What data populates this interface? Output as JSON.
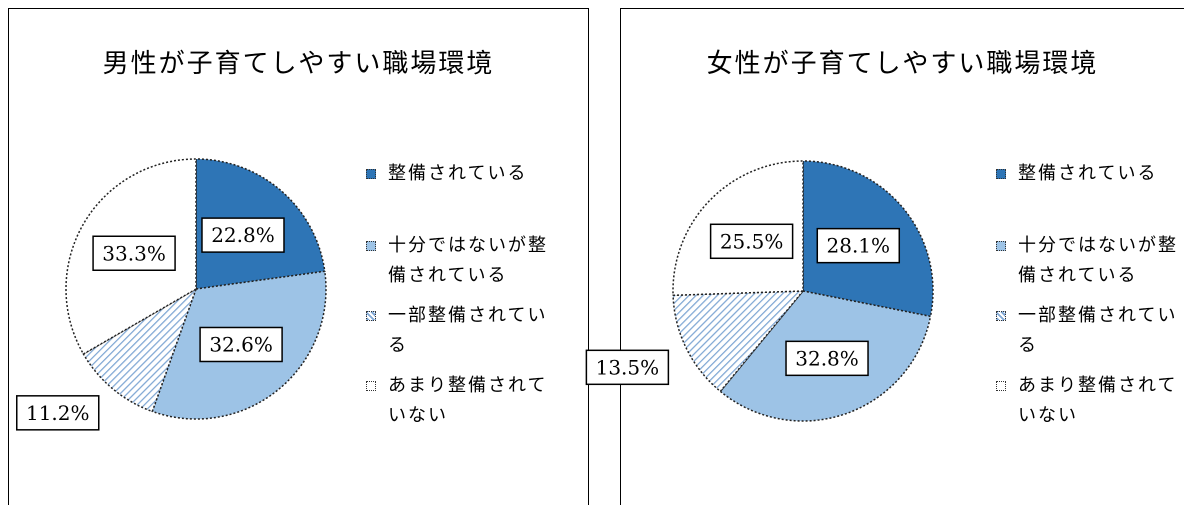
{
  "chart_data": [
    {
      "type": "pie",
      "title": "男性が子育てしやすい職場環境",
      "categories": [
        "整備されている",
        "十分ではないが整備されている",
        "一部整備されている",
        "あまり整備されていない"
      ],
      "values": [
        22.8,
        32.6,
        11.2,
        33.3
      ],
      "value_labels": [
        "22.8%",
        "32.6%",
        "11.2%",
        "33.3%"
      ],
      "colors": [
        "#2e75b6",
        "#9dc3e6",
        "#7fa7d4",
        "#ffffff"
      ],
      "patterns": [
        "solid",
        "solid",
        "diagonal",
        "solid"
      ]
    },
    {
      "type": "pie",
      "title": "女性が子育てしやすい職場環境",
      "categories": [
        "整備されている",
        "十分ではないが整備されている",
        "一部整備されている",
        "あまり整備されていない"
      ],
      "values": [
        28.1,
        32.8,
        13.5,
        25.5
      ],
      "value_labels": [
        "28.1%",
        "32.8%",
        "13.5%",
        "25.5%"
      ],
      "colors": [
        "#2e75b6",
        "#9dc3e6",
        "#7fa7d4",
        "#ffffff"
      ],
      "patterns": [
        "solid",
        "solid",
        "diagonal",
        "solid"
      ]
    }
  ]
}
